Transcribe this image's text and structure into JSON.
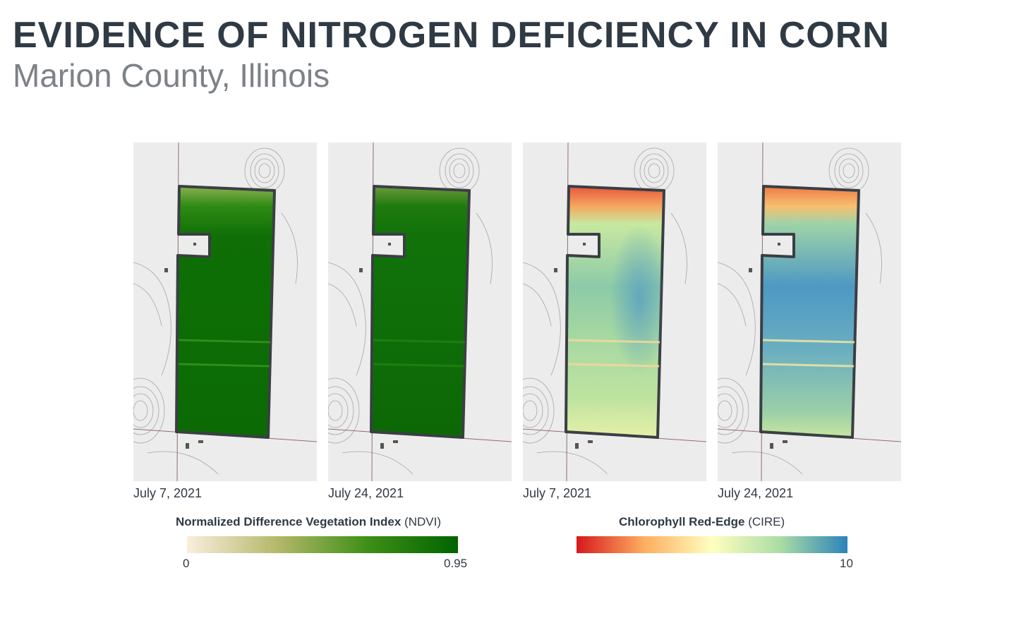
{
  "title": "EVIDENCE OF NITROGEN DEFICIENCY IN CORN",
  "subtitle": "Marion County, Illinois",
  "panels": [
    {
      "date": "July 7, 2021",
      "index": "ndvi",
      "icon": "ndvi-map"
    },
    {
      "date": "July 24, 2021",
      "index": "ndvi",
      "icon": "ndvi-map"
    },
    {
      "date": "July 7, 2021",
      "index": "cire",
      "icon": "cire-map"
    },
    {
      "date": "July 24, 2021",
      "index": "cire",
      "icon": "cire-map"
    }
  ],
  "legends": {
    "ndvi": {
      "name": "Normalized Difference Vegetation Index",
      "abbr": "(NDVI)",
      "min": "0",
      "max": "0.95",
      "colors": [
        "#faeedd",
        "#b4b86a",
        "#3e8f16",
        "#006400"
      ]
    },
    "cire": {
      "name": "Chlorophyll Red-Edge",
      "abbr": "(CIRE)",
      "max": "10",
      "colors": [
        "#d7191c",
        "#fdae61",
        "#ffffbf",
        "#abdda4",
        "#2b83ba"
      ]
    }
  },
  "colors": {
    "field_outline": "#3a3f44",
    "basemap": "#eeeeee",
    "contour": "#9a9a9a",
    "road": "#8c6e72"
  }
}
